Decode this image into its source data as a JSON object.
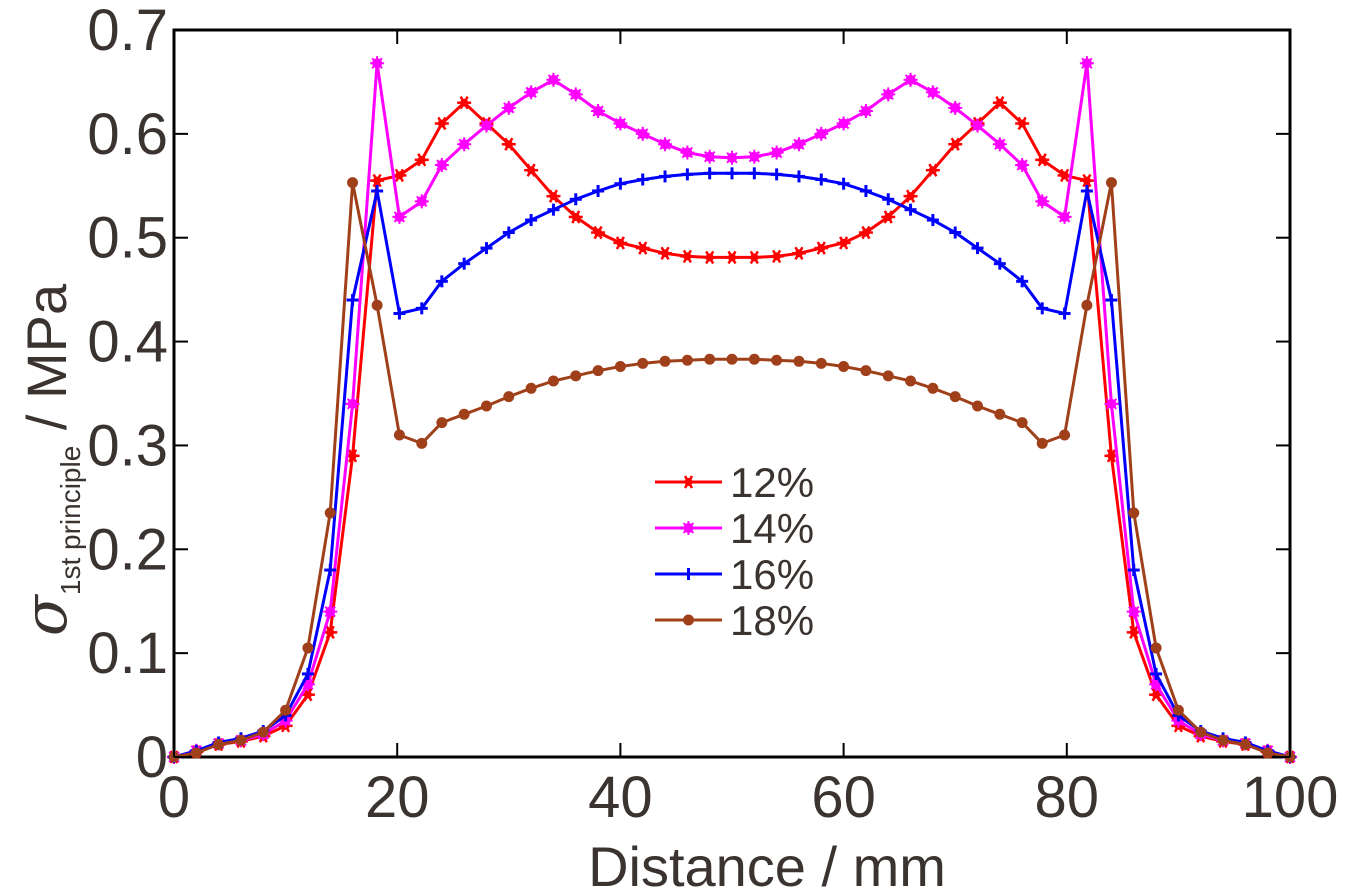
{
  "chart_data": {
    "type": "line",
    "title": "",
    "xlabel": "Distance / mm",
    "ylabel": {
      "symbol": "σ",
      "subscript": "1st principle",
      "unit": " / MPa"
    },
    "xlim": [
      0,
      100
    ],
    "ylim": [
      0,
      0.7
    ],
    "xticks": [
      0,
      20,
      40,
      60,
      80,
      100
    ],
    "xtick_labels": [
      "0",
      "20",
      "40",
      "60",
      "80",
      "100"
    ],
    "yticks": [
      0,
      0.1,
      0.2,
      0.3,
      0.4,
      0.5,
      0.6,
      0.7
    ],
    "ytick_labels": [
      "0",
      "0.1",
      "0.2",
      "0.3",
      "0.4",
      "0.5",
      "0.6",
      "0.7"
    ],
    "grid": false,
    "legend_position": "center",
    "x": [
      0,
      2,
      4,
      6,
      8,
      10,
      12,
      14,
      16,
      18.2,
      20.2,
      22.2,
      24,
      26,
      28,
      30,
      32,
      34,
      36,
      38,
      40,
      42,
      44,
      46,
      48,
      50,
      52,
      54,
      56,
      58,
      60,
      62,
      64,
      66,
      68,
      70,
      72,
      74,
      76,
      77.8,
      79.8,
      81.8,
      84,
      86,
      88,
      90,
      92,
      94,
      96,
      98,
      100
    ],
    "series": [
      {
        "name": "12%",
        "color": "#ff0000",
        "marker": "asterisk",
        "values": [
          0.0,
          0.005,
          0.012,
          0.015,
          0.02,
          0.03,
          0.06,
          0.12,
          0.29,
          0.555,
          0.56,
          0.575,
          0.61,
          0.63,
          0.61,
          0.59,
          0.565,
          0.54,
          0.52,
          0.505,
          0.495,
          0.49,
          0.485,
          0.482,
          0.481,
          0.481,
          0.481,
          0.482,
          0.485,
          0.49,
          0.495,
          0.505,
          0.52,
          0.54,
          0.565,
          0.59,
          0.61,
          0.63,
          0.61,
          0.575,
          0.56,
          0.555,
          0.29,
          0.12,
          0.06,
          0.03,
          0.02,
          0.015,
          0.012,
          0.005,
          0.0
        ]
      },
      {
        "name": "14%",
        "color": "#ff00ff",
        "marker": "star",
        "values": [
          0.0,
          0.006,
          0.013,
          0.016,
          0.022,
          0.035,
          0.07,
          0.14,
          0.34,
          0.668,
          0.52,
          0.535,
          0.57,
          0.59,
          0.608,
          0.625,
          0.64,
          0.652,
          0.638,
          0.622,
          0.61,
          0.6,
          0.59,
          0.582,
          0.578,
          0.577,
          0.578,
          0.582,
          0.59,
          0.6,
          0.61,
          0.622,
          0.638,
          0.652,
          0.64,
          0.625,
          0.608,
          0.59,
          0.57,
          0.535,
          0.52,
          0.668,
          0.34,
          0.14,
          0.07,
          0.035,
          0.022,
          0.016,
          0.013,
          0.006,
          0.0
        ]
      },
      {
        "name": "16%",
        "color": "#0000ff",
        "marker": "plus",
        "values": [
          0.0,
          0.006,
          0.014,
          0.018,
          0.025,
          0.04,
          0.08,
          0.18,
          0.44,
          0.545,
          0.427,
          0.432,
          0.458,
          0.475,
          0.49,
          0.505,
          0.517,
          0.527,
          0.537,
          0.545,
          0.552,
          0.556,
          0.559,
          0.561,
          0.562,
          0.562,
          0.562,
          0.561,
          0.559,
          0.556,
          0.552,
          0.545,
          0.537,
          0.527,
          0.517,
          0.505,
          0.49,
          0.475,
          0.458,
          0.432,
          0.427,
          0.545,
          0.44,
          0.18,
          0.08,
          0.04,
          0.025,
          0.018,
          0.014,
          0.006,
          0.0
        ]
      },
      {
        "name": "18%",
        "color": "#a0401a",
        "marker": "dot",
        "values": [
          0.0,
          0.004,
          0.012,
          0.016,
          0.024,
          0.045,
          0.105,
          0.235,
          0.553,
          0.435,
          0.31,
          0.302,
          0.322,
          0.33,
          0.338,
          0.347,
          0.355,
          0.362,
          0.367,
          0.372,
          0.376,
          0.379,
          0.381,
          0.382,
          0.383,
          0.383,
          0.383,
          0.382,
          0.381,
          0.379,
          0.376,
          0.372,
          0.367,
          0.362,
          0.355,
          0.347,
          0.338,
          0.33,
          0.322,
          0.302,
          0.31,
          0.435,
          0.553,
          0.235,
          0.105,
          0.045,
          0.024,
          0.016,
          0.012,
          0.004,
          0.0
        ]
      }
    ]
  }
}
